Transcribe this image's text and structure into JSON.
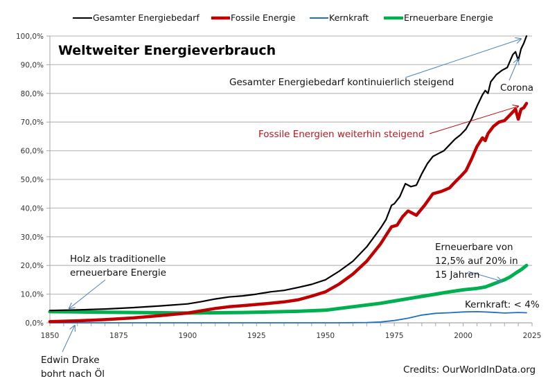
{
  "chart_data": {
    "type": "line",
    "title": "Weltweiter Energieverbrauch",
    "xlabel": "",
    "ylabel": "",
    "xlim": [
      1850,
      2025
    ],
    "ylim": [
      0,
      100
    ],
    "x_ticks": [
      1850,
      1875,
      1900,
      1925,
      1950,
      1975,
      2000,
      2025
    ],
    "y_ticks": [
      "0,0%",
      "10,0%",
      "20,0%",
      "30,0%",
      "40,0%",
      "50,0%",
      "60,0%",
      "70,0%",
      "80,0%",
      "90,0%",
      "100,0%"
    ],
    "grid": true,
    "legend_position": "top",
    "series": [
      {
        "name": "Gesamter Energiebedarf",
        "color": "#000000",
        "points": [
          [
            1850,
            4.3
          ],
          [
            1860,
            4.5
          ],
          [
            1870,
            4.8
          ],
          [
            1880,
            5.3
          ],
          [
            1890,
            5.9
          ],
          [
            1900,
            6.6
          ],
          [
            1905,
            7.4
          ],
          [
            1910,
            8.3
          ],
          [
            1915,
            9.0
          ],
          [
            1920,
            9.4
          ],
          [
            1925,
            10.0
          ],
          [
            1930,
            10.8
          ],
          [
            1935,
            11.3
          ],
          [
            1940,
            12.3
          ],
          [
            1945,
            13.4
          ],
          [
            1950,
            15.0
          ],
          [
            1955,
            18.0
          ],
          [
            1960,
            21.5
          ],
          [
            1965,
            26.5
          ],
          [
            1970,
            33.0
          ],
          [
            1972,
            36.0
          ],
          [
            1974,
            41.0
          ],
          [
            1975,
            41.5
          ],
          [
            1977,
            44.0
          ],
          [
            1979,
            48.5
          ],
          [
            1981,
            47.5
          ],
          [
            1983,
            48.0
          ],
          [
            1985,
            52.0
          ],
          [
            1987,
            55.5
          ],
          [
            1989,
            58.0
          ],
          [
            1991,
            59.0
          ],
          [
            1993,
            60.0
          ],
          [
            1995,
            62.0
          ],
          [
            1997,
            64.0
          ],
          [
            1999,
            65.5
          ],
          [
            2001,
            67.5
          ],
          [
            2003,
            71.0
          ],
          [
            2005,
            75.5
          ],
          [
            2007,
            79.5
          ],
          [
            2008,
            81.0
          ],
          [
            2009,
            80.0
          ],
          [
            2010,
            84.0
          ],
          [
            2012,
            86.5
          ],
          [
            2014,
            88.0
          ],
          [
            2016,
            89.0
          ],
          [
            2018,
            93.5
          ],
          [
            2019,
            94.5
          ],
          [
            2020,
            91.5
          ],
          [
            2021,
            95.5
          ],
          [
            2022,
            97.5
          ],
          [
            2023,
            100.0
          ]
        ]
      },
      {
        "name": "Fossile Energie",
        "color": "#c00000",
        "points": [
          [
            1850,
            0.4
          ],
          [
            1860,
            0.7
          ],
          [
            1870,
            1.1
          ],
          [
            1880,
            1.7
          ],
          [
            1890,
            2.5
          ],
          [
            1900,
            3.4
          ],
          [
            1905,
            4.2
          ],
          [
            1910,
            5.0
          ],
          [
            1915,
            5.6
          ],
          [
            1920,
            6.0
          ],
          [
            1925,
            6.4
          ],
          [
            1930,
            6.8
          ],
          [
            1935,
            7.3
          ],
          [
            1940,
            8.0
          ],
          [
            1945,
            9.3
          ],
          [
            1950,
            10.8
          ],
          [
            1955,
            13.5
          ],
          [
            1960,
            17.0
          ],
          [
            1965,
            21.5
          ],
          [
            1970,
            27.5
          ],
          [
            1972,
            30.5
          ],
          [
            1974,
            33.5
          ],
          [
            1976,
            34.0
          ],
          [
            1978,
            37.0
          ],
          [
            1980,
            39.0
          ],
          [
            1983,
            37.5
          ],
          [
            1986,
            41.0
          ],
          [
            1989,
            45.0
          ],
          [
            1992,
            45.8
          ],
          [
            1995,
            47.0
          ],
          [
            1997,
            49.0
          ],
          [
            1999,
            51.0
          ],
          [
            2001,
            53.0
          ],
          [
            2003,
            57.0
          ],
          [
            2005,
            61.5
          ],
          [
            2007,
            64.5
          ],
          [
            2008,
            63.5
          ],
          [
            2009,
            66.0
          ],
          [
            2011,
            68.5
          ],
          [
            2013,
            70.0
          ],
          [
            2015,
            70.5
          ],
          [
            2017,
            72.5
          ],
          [
            2019,
            74.5
          ],
          [
            2020,
            71.0
          ],
          [
            2021,
            74.5
          ],
          [
            2022,
            75.0
          ],
          [
            2023,
            76.5
          ]
        ]
      },
      {
        "name": "Kernkraft",
        "color": "#1f6fbf",
        "points": [
          [
            1850,
            0.0
          ],
          [
            1955,
            0.0
          ],
          [
            1965,
            0.1
          ],
          [
            1970,
            0.3
          ],
          [
            1975,
            0.8
          ],
          [
            1980,
            1.6
          ],
          [
            1985,
            2.7
          ],
          [
            1990,
            3.3
          ],
          [
            1995,
            3.5
          ],
          [
            2000,
            3.8
          ],
          [
            2005,
            3.9
          ],
          [
            2010,
            3.7
          ],
          [
            2015,
            3.4
          ],
          [
            2020,
            3.6
          ],
          [
            2023,
            3.5
          ]
        ]
      },
      {
        "name": "Erneuerbare Energie",
        "color": "#00b050",
        "points": [
          [
            1850,
            3.9
          ],
          [
            1860,
            3.8
          ],
          [
            1870,
            3.7
          ],
          [
            1880,
            3.6
          ],
          [
            1890,
            3.5
          ],
          [
            1900,
            3.4
          ],
          [
            1910,
            3.5
          ],
          [
            1920,
            3.6
          ],
          [
            1930,
            3.8
          ],
          [
            1940,
            4.0
          ],
          [
            1950,
            4.4
          ],
          [
            1955,
            5.0
          ],
          [
            1960,
            5.6
          ],
          [
            1965,
            6.2
          ],
          [
            1970,
            6.8
          ],
          [
            1975,
            7.6
          ],
          [
            1980,
            8.4
          ],
          [
            1985,
            9.2
          ],
          [
            1990,
            10.0
          ],
          [
            1995,
            10.8
          ],
          [
            2000,
            11.5
          ],
          [
            2005,
            12.0
          ],
          [
            2008,
            12.5
          ],
          [
            2010,
            13.2
          ],
          [
            2013,
            14.3
          ],
          [
            2015,
            15.0
          ],
          [
            2017,
            16.0
          ],
          [
            2019,
            17.3
          ],
          [
            2021,
            18.5
          ],
          [
            2023,
            20.0
          ]
        ]
      }
    ],
    "annotations": [
      {
        "id": "gesamt",
        "text": "Gesamter Energiebedarf kontinuierlich steigend",
        "color": "#111111",
        "arrow_to": [
          2021,
          99.0
        ],
        "arrow_color": "#4f81bd"
      },
      {
        "id": "corona",
        "text": "Corona",
        "color": "#111111",
        "arrow_to": [
          2020,
          92.0
        ],
        "arrow_color": "#4f81bd"
      },
      {
        "id": "fossil",
        "text": "Fossile Energien weiterhin steigend",
        "color": "#b8161a",
        "arrow_to": [
          2020,
          75.5
        ],
        "arrow_color": "#c00000"
      },
      {
        "id": "holz",
        "lines": [
          "Holz als traditionelle",
          "erneuerbare Energie"
        ],
        "color": "#111111",
        "arrow_to": [
          1857,
          5.0
        ],
        "arrow_color": "#4f81bd"
      },
      {
        "id": "drake",
        "lines": [
          "Edwin Drake",
          "bohrt nach Öl"
        ],
        "color": "#111111",
        "arrow_to": [
          1859,
          0.0
        ],
        "arrow_color": "#4f81bd"
      },
      {
        "id": "erneuerbar",
        "lines": [
          "Erneuerbare von",
          "12,5% auf 20% in",
          "15 Jahren"
        ],
        "color": "#111111",
        "arrow_to": [
          2014,
          14.5
        ],
        "arrow_color": "#4f81bd"
      },
      {
        "id": "kern",
        "text": "Kernkraft: < 4%",
        "color": "#111111"
      }
    ],
    "credits": "Credits: OurWorldInData.org"
  }
}
